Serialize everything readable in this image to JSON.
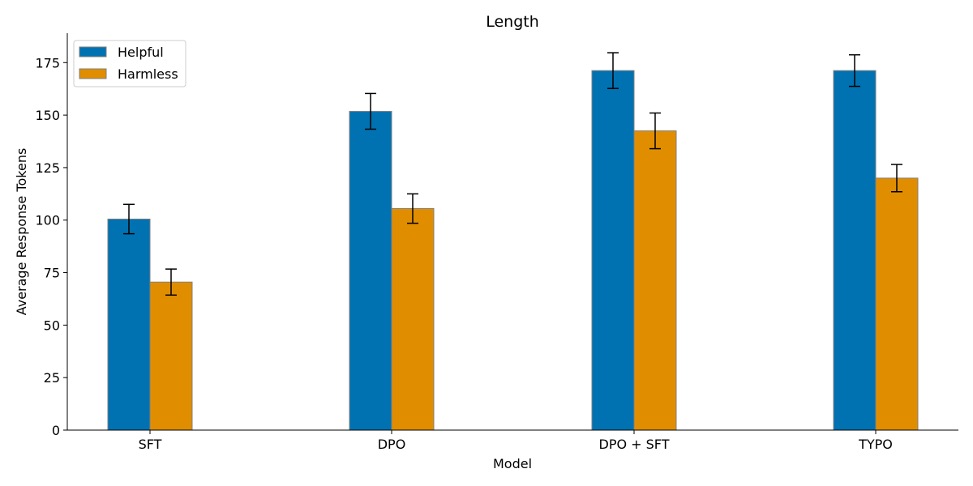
{
  "chart_data": {
    "type": "bar",
    "title": "Length",
    "xlabel": "Model",
    "ylabel": "Average Response Tokens",
    "categories": [
      "SFT",
      "DPO",
      "DPO + SFT",
      "TYPO"
    ],
    "series": [
      {
        "name": "Helpful",
        "color": "#0072b2",
        "values": [
          100.5,
          151.8,
          171.2,
          171.2
        ],
        "errors": [
          7.0,
          8.5,
          8.5,
          7.5
        ]
      },
      {
        "name": "Harmless",
        "color": "#e08e00",
        "values": [
          70.5,
          105.5,
          142.5,
          120.0
        ],
        "errors": [
          6.2,
          7.0,
          8.5,
          6.5
        ]
      }
    ],
    "ylim": [
      0,
      189
    ],
    "yticks": [
      0,
      25,
      50,
      75,
      100,
      125,
      150,
      175
    ],
    "grid": false,
    "legend_position": "top-left"
  }
}
